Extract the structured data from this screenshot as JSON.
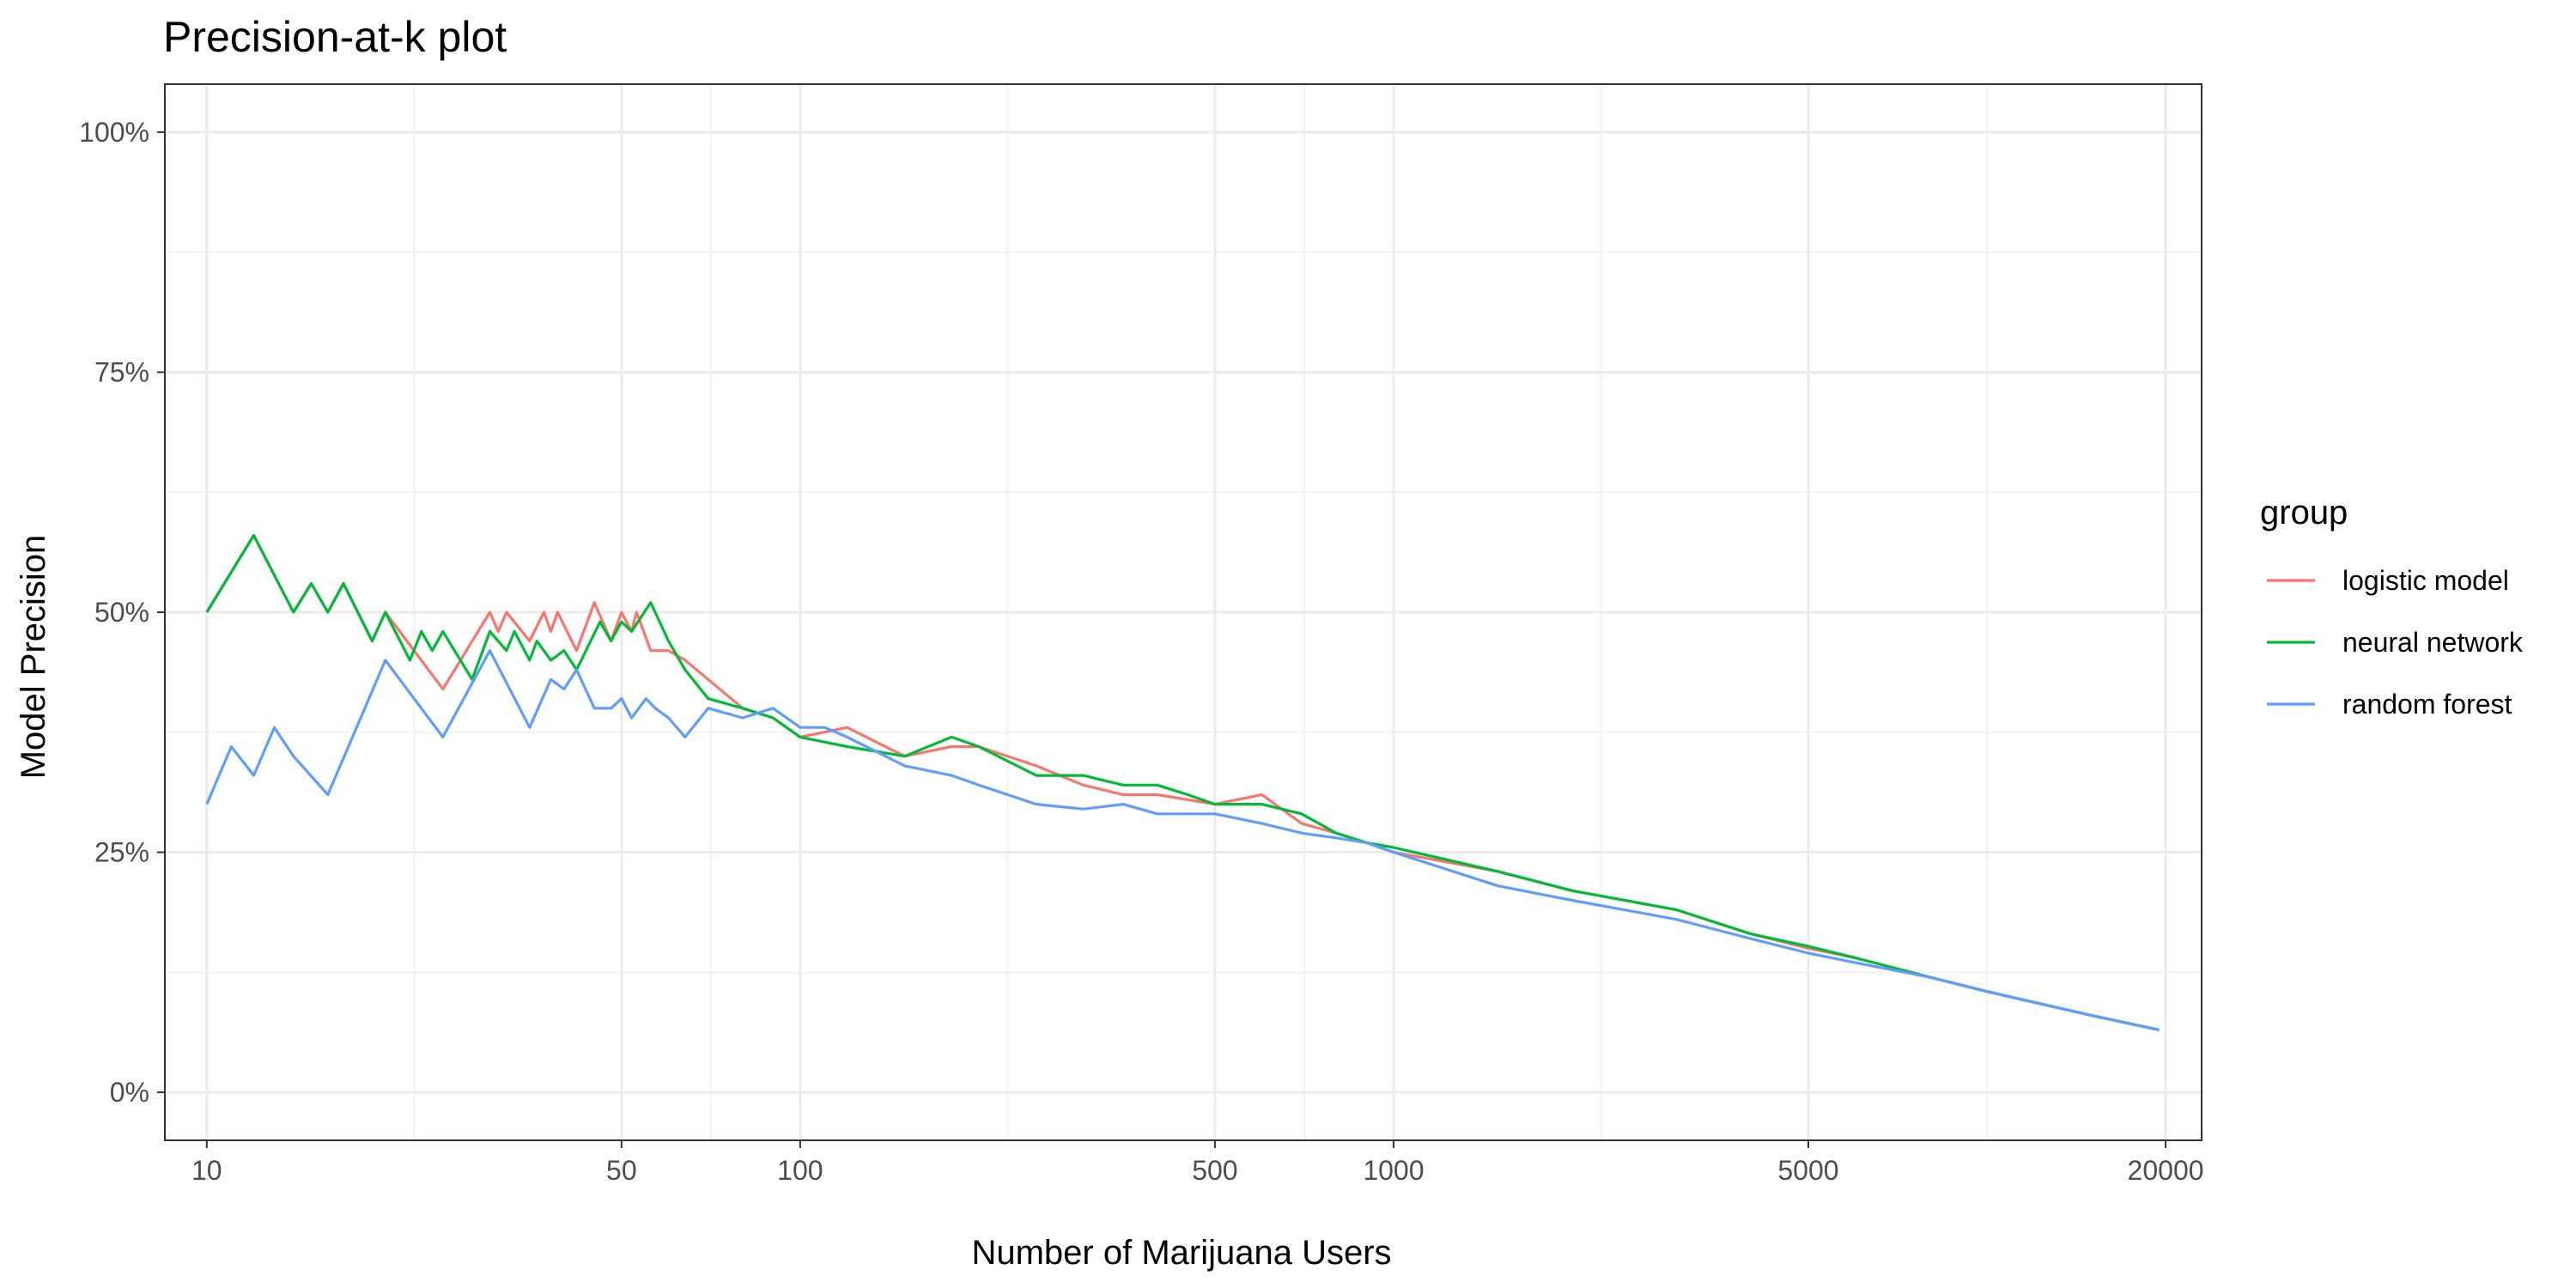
{
  "chart_data": {
    "type": "line",
    "title": "Precision-at-k plot",
    "xlabel": "Number of Marijuana Users",
    "ylabel": "Model Precision",
    "x_scale": "log10",
    "xlim": [
      8.5,
      23000
    ],
    "ylim": [
      -0.05,
      1.05
    ],
    "x_ticks": [
      10,
      50,
      100,
      500,
      1000,
      5000,
      20000
    ],
    "x_tick_labels": [
      "10",
      "50",
      "100",
      "500",
      "1000",
      "5000",
      "20000"
    ],
    "y_ticks": [
      0,
      0.25,
      0.5,
      0.75,
      1.0
    ],
    "y_tick_labels": [
      "0%",
      "25%",
      "50%",
      "75%",
      "100%"
    ],
    "grid": true,
    "legend": {
      "title": "group",
      "position": "right"
    },
    "series": [
      {
        "name": "logistic model",
        "color": "#F8766D",
        "points": [
          [
            10,
            0.5
          ],
          [
            12,
            0.58
          ],
          [
            14,
            0.5
          ],
          [
            15,
            0.53
          ],
          [
            16,
            0.5
          ],
          [
            17,
            0.53
          ],
          [
            19,
            0.47
          ],
          [
            20,
            0.5
          ],
          [
            25,
            0.42
          ],
          [
            30,
            0.5
          ],
          [
            31,
            0.48
          ],
          [
            32,
            0.5
          ],
          [
            35,
            0.47
          ],
          [
            37,
            0.5
          ],
          [
            38,
            0.48
          ],
          [
            39,
            0.5
          ],
          [
            42,
            0.46
          ],
          [
            45,
            0.51
          ],
          [
            48,
            0.47
          ],
          [
            50,
            0.5
          ],
          [
            52,
            0.48
          ],
          [
            53,
            0.5
          ],
          [
            56,
            0.46
          ],
          [
            60,
            0.46
          ],
          [
            64,
            0.45
          ],
          [
            70,
            0.43
          ],
          [
            80,
            0.4
          ],
          [
            90,
            0.39
          ],
          [
            100,
            0.37
          ],
          [
            120,
            0.38
          ],
          [
            150,
            0.35
          ],
          [
            180,
            0.36
          ],
          [
            200,
            0.36
          ],
          [
            250,
            0.34
          ],
          [
            300,
            0.32
          ],
          [
            350,
            0.31
          ],
          [
            400,
            0.31
          ],
          [
            500,
            0.3
          ],
          [
            600,
            0.31
          ],
          [
            700,
            0.28
          ],
          [
            800,
            0.27
          ],
          [
            900,
            0.26
          ],
          [
            1000,
            0.25
          ],
          [
            1500,
            0.23
          ],
          [
            2000,
            0.21
          ],
          [
            3000,
            0.19
          ],
          [
            4000,
            0.165
          ],
          [
            5000,
            0.15
          ],
          [
            6000,
            0.14
          ],
          [
            8000,
            0.12
          ],
          [
            10000,
            0.105
          ],
          [
            15000,
            0.08
          ],
          [
            19500,
            0.065
          ]
        ]
      },
      {
        "name": "neural network",
        "color": "#00BA38",
        "points": [
          [
            10,
            0.5
          ],
          [
            12,
            0.58
          ],
          [
            14,
            0.5
          ],
          [
            15,
            0.53
          ],
          [
            16,
            0.5
          ],
          [
            17,
            0.53
          ],
          [
            19,
            0.47
          ],
          [
            20,
            0.5
          ],
          [
            22,
            0.45
          ],
          [
            23,
            0.48
          ],
          [
            24,
            0.46
          ],
          [
            25,
            0.48
          ],
          [
            28,
            0.43
          ],
          [
            30,
            0.48
          ],
          [
            32,
            0.46
          ],
          [
            33,
            0.48
          ],
          [
            35,
            0.45
          ],
          [
            36,
            0.47
          ],
          [
            38,
            0.45
          ],
          [
            40,
            0.46
          ],
          [
            42,
            0.44
          ],
          [
            46,
            0.49
          ],
          [
            48,
            0.47
          ],
          [
            50,
            0.49
          ],
          [
            52,
            0.48
          ],
          [
            56,
            0.51
          ],
          [
            60,
            0.47
          ],
          [
            64,
            0.44
          ],
          [
            70,
            0.41
          ],
          [
            80,
            0.4
          ],
          [
            90,
            0.39
          ],
          [
            100,
            0.37
          ],
          [
            120,
            0.36
          ],
          [
            150,
            0.35
          ],
          [
            180,
            0.37
          ],
          [
            200,
            0.36
          ],
          [
            250,
            0.33
          ],
          [
            300,
            0.33
          ],
          [
            350,
            0.32
          ],
          [
            400,
            0.32
          ],
          [
            450,
            0.31
          ],
          [
            500,
            0.3
          ],
          [
            600,
            0.3
          ],
          [
            700,
            0.29
          ],
          [
            800,
            0.27
          ],
          [
            900,
            0.26
          ],
          [
            1000,
            0.255
          ],
          [
            1500,
            0.23
          ],
          [
            2000,
            0.21
          ],
          [
            3000,
            0.19
          ],
          [
            4000,
            0.165
          ],
          [
            5000,
            0.152
          ],
          [
            6000,
            0.14
          ],
          [
            8000,
            0.12
          ],
          [
            10000,
            0.105
          ],
          [
            15000,
            0.08
          ],
          [
            19500,
            0.065
          ]
        ]
      },
      {
        "name": "random forest",
        "color": "#619CFF",
        "points": [
          [
            10,
            0.3
          ],
          [
            11,
            0.36
          ],
          [
            12,
            0.33
          ],
          [
            13,
            0.38
          ],
          [
            14,
            0.35
          ],
          [
            16,
            0.31
          ],
          [
            20,
            0.45
          ],
          [
            25,
            0.37
          ],
          [
            30,
            0.46
          ],
          [
            35,
            0.38
          ],
          [
            38,
            0.43
          ],
          [
            40,
            0.42
          ],
          [
            42,
            0.44
          ],
          [
            45,
            0.4
          ],
          [
            48,
            0.4
          ],
          [
            50,
            0.41
          ],
          [
            52,
            0.39
          ],
          [
            55,
            0.41
          ],
          [
            57,
            0.4
          ],
          [
            60,
            0.39
          ],
          [
            64,
            0.37
          ],
          [
            70,
            0.4
          ],
          [
            80,
            0.39
          ],
          [
            90,
            0.4
          ],
          [
            100,
            0.38
          ],
          [
            110,
            0.38
          ],
          [
            120,
            0.37
          ],
          [
            150,
            0.34
          ],
          [
            180,
            0.33
          ],
          [
            200,
            0.32
          ],
          [
            250,
            0.3
          ],
          [
            300,
            0.295
          ],
          [
            350,
            0.3
          ],
          [
            400,
            0.29
          ],
          [
            500,
            0.29
          ],
          [
            600,
            0.28
          ],
          [
            700,
            0.27
          ],
          [
            800,
            0.265
          ],
          [
            900,
            0.26
          ],
          [
            1000,
            0.25
          ],
          [
            1500,
            0.215
          ],
          [
            2000,
            0.2
          ],
          [
            3000,
            0.18
          ],
          [
            4000,
            0.16
          ],
          [
            5000,
            0.145
          ],
          [
            6000,
            0.135
          ],
          [
            8000,
            0.12
          ],
          [
            10000,
            0.105
          ],
          [
            15000,
            0.08
          ],
          [
            19500,
            0.065
          ]
        ]
      }
    ]
  }
}
